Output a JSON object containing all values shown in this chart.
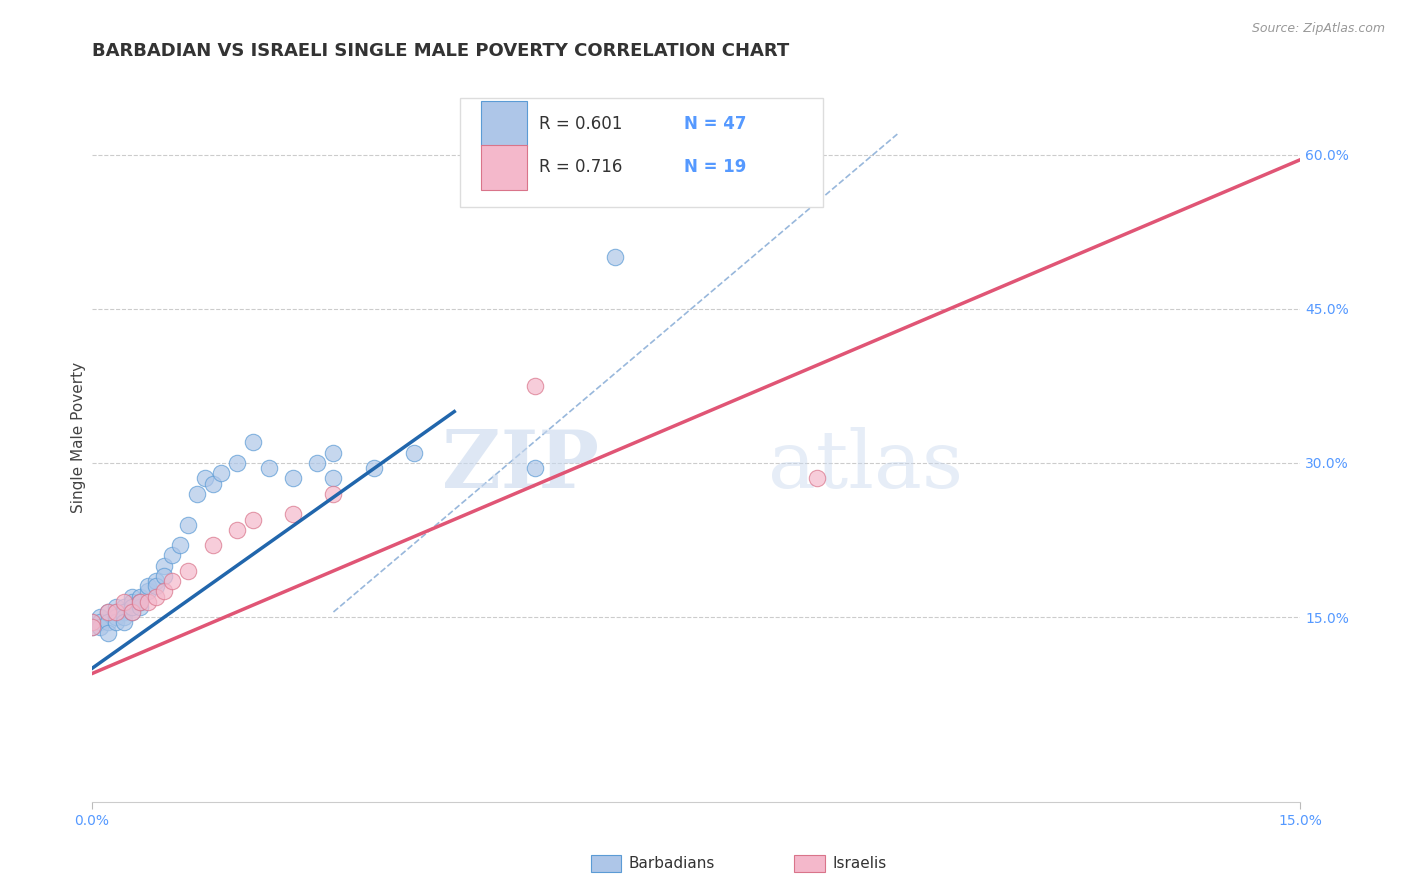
{
  "title": "BARBADIAN VS ISRAELI SINGLE MALE POVERTY CORRELATION CHART",
  "source": "Source: ZipAtlas.com",
  "ylabel": "Single Male Poverty",
  "xlim": [
    0.0,
    0.15
  ],
  "ylim": [
    -0.03,
    0.68
  ],
  "xtick_vals": [
    0.0,
    0.15
  ],
  "xtick_labels": [
    "0.0%",
    "15.0%"
  ],
  "right_yticks": [
    0.15,
    0.3,
    0.45,
    0.6
  ],
  "right_yticklabels": [
    "15.0%",
    "30.0%",
    "45.0%",
    "60.0%"
  ],
  "grid_color": "#cccccc",
  "background_color": "#ffffff",
  "barbadian_color": "#aec6e8",
  "barbadian_edge": "#5b9bd5",
  "israeli_color": "#f4b8cb",
  "israeli_edge": "#d9748a",
  "blue_line_color": "#2166ac",
  "pink_line_color": "#e05575",
  "dashed_line_color": "#8db0d8",
  "legend_r1": "R = 0.601",
  "legend_n1": "N = 47",
  "legend_r2": "R = 0.716",
  "legend_n2": "N = 19",
  "legend_color_blue": "#aec6e8",
  "legend_color_pink": "#f4b8cb",
  "legend_border_blue": "#5b9bd5",
  "legend_border_pink": "#d9748a",
  "watermark_zip": "ZIP",
  "watermark_atlas": "atlas",
  "barbadian_x": [
    0.0,
    0.0,
    0.001,
    0.001,
    0.001,
    0.002,
    0.002,
    0.002,
    0.003,
    0.003,
    0.003,
    0.003,
    0.004,
    0.004,
    0.004,
    0.004,
    0.005,
    0.005,
    0.005,
    0.005,
    0.006,
    0.006,
    0.006,
    0.007,
    0.007,
    0.008,
    0.008,
    0.009,
    0.009,
    0.01,
    0.011,
    0.012,
    0.013,
    0.014,
    0.015,
    0.016,
    0.018,
    0.02,
    0.022,
    0.025,
    0.028,
    0.03,
    0.03,
    0.035,
    0.04,
    0.055,
    0.065
  ],
  "barbadian_y": [
    0.145,
    0.14,
    0.15,
    0.145,
    0.14,
    0.155,
    0.145,
    0.135,
    0.155,
    0.16,
    0.15,
    0.145,
    0.16,
    0.155,
    0.15,
    0.145,
    0.17,
    0.165,
    0.155,
    0.16,
    0.17,
    0.16,
    0.165,
    0.175,
    0.18,
    0.185,
    0.18,
    0.2,
    0.19,
    0.21,
    0.22,
    0.24,
    0.27,
    0.285,
    0.28,
    0.29,
    0.3,
    0.32,
    0.295,
    0.285,
    0.3,
    0.31,
    0.285,
    0.295,
    0.31,
    0.295,
    0.5
  ],
  "israeli_x": [
    0.0,
    0.0,
    0.002,
    0.003,
    0.004,
    0.005,
    0.006,
    0.007,
    0.008,
    0.009,
    0.01,
    0.012,
    0.015,
    0.018,
    0.02,
    0.025,
    0.03,
    0.055,
    0.09
  ],
  "israeli_y": [
    0.145,
    0.14,
    0.155,
    0.155,
    0.165,
    0.155,
    0.165,
    0.165,
    0.17,
    0.175,
    0.185,
    0.195,
    0.22,
    0.235,
    0.245,
    0.25,
    0.27,
    0.375,
    0.285
  ],
  "blue_trendline_x": [
    0.0,
    0.045
  ],
  "blue_trendline_y": [
    0.1,
    0.35
  ],
  "pink_trendline_x": [
    0.0,
    0.15
  ],
  "pink_trendline_y": [
    0.095,
    0.595
  ],
  "dashed_line_x": [
    0.03,
    0.1
  ],
  "dashed_line_y": [
    0.155,
    0.62
  ],
  "title_fontsize": 13,
  "axis_fontsize": 11,
  "tick_fontsize": 10,
  "tick_color": "#5599ff"
}
